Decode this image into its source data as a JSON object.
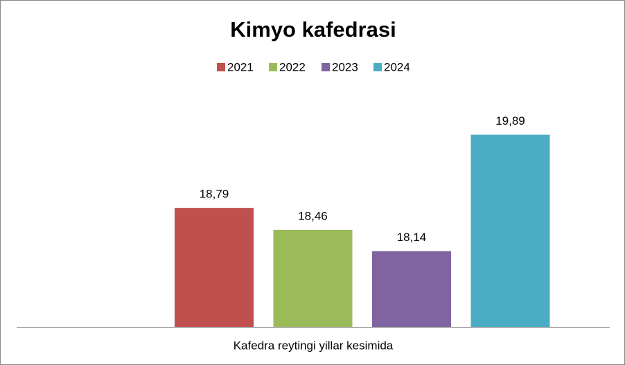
{
  "chart_data": {
    "type": "bar",
    "title": "Kimyo kafedrasi",
    "categories": [
      "Kafedra reytingi yillar kesimida"
    ],
    "series": [
      {
        "name": "2021",
        "color": "#c0504d",
        "values": [
          18.79
        ],
        "value_labels": [
          "18,79"
        ]
      },
      {
        "name": "2022",
        "color": "#9bbb59",
        "values": [
          18.46
        ],
        "value_labels": [
          "18,46"
        ]
      },
      {
        "name": "2023",
        "color": "#8064a2",
        "values": [
          18.14
        ],
        "value_labels": [
          "18,14"
        ]
      },
      {
        "name": "2024",
        "color": "#4bacc6",
        "values": [
          19.89
        ],
        "value_labels": [
          "19,89"
        ]
      }
    ],
    "ylim": [
      17,
      20
    ],
    "legend": "top"
  }
}
